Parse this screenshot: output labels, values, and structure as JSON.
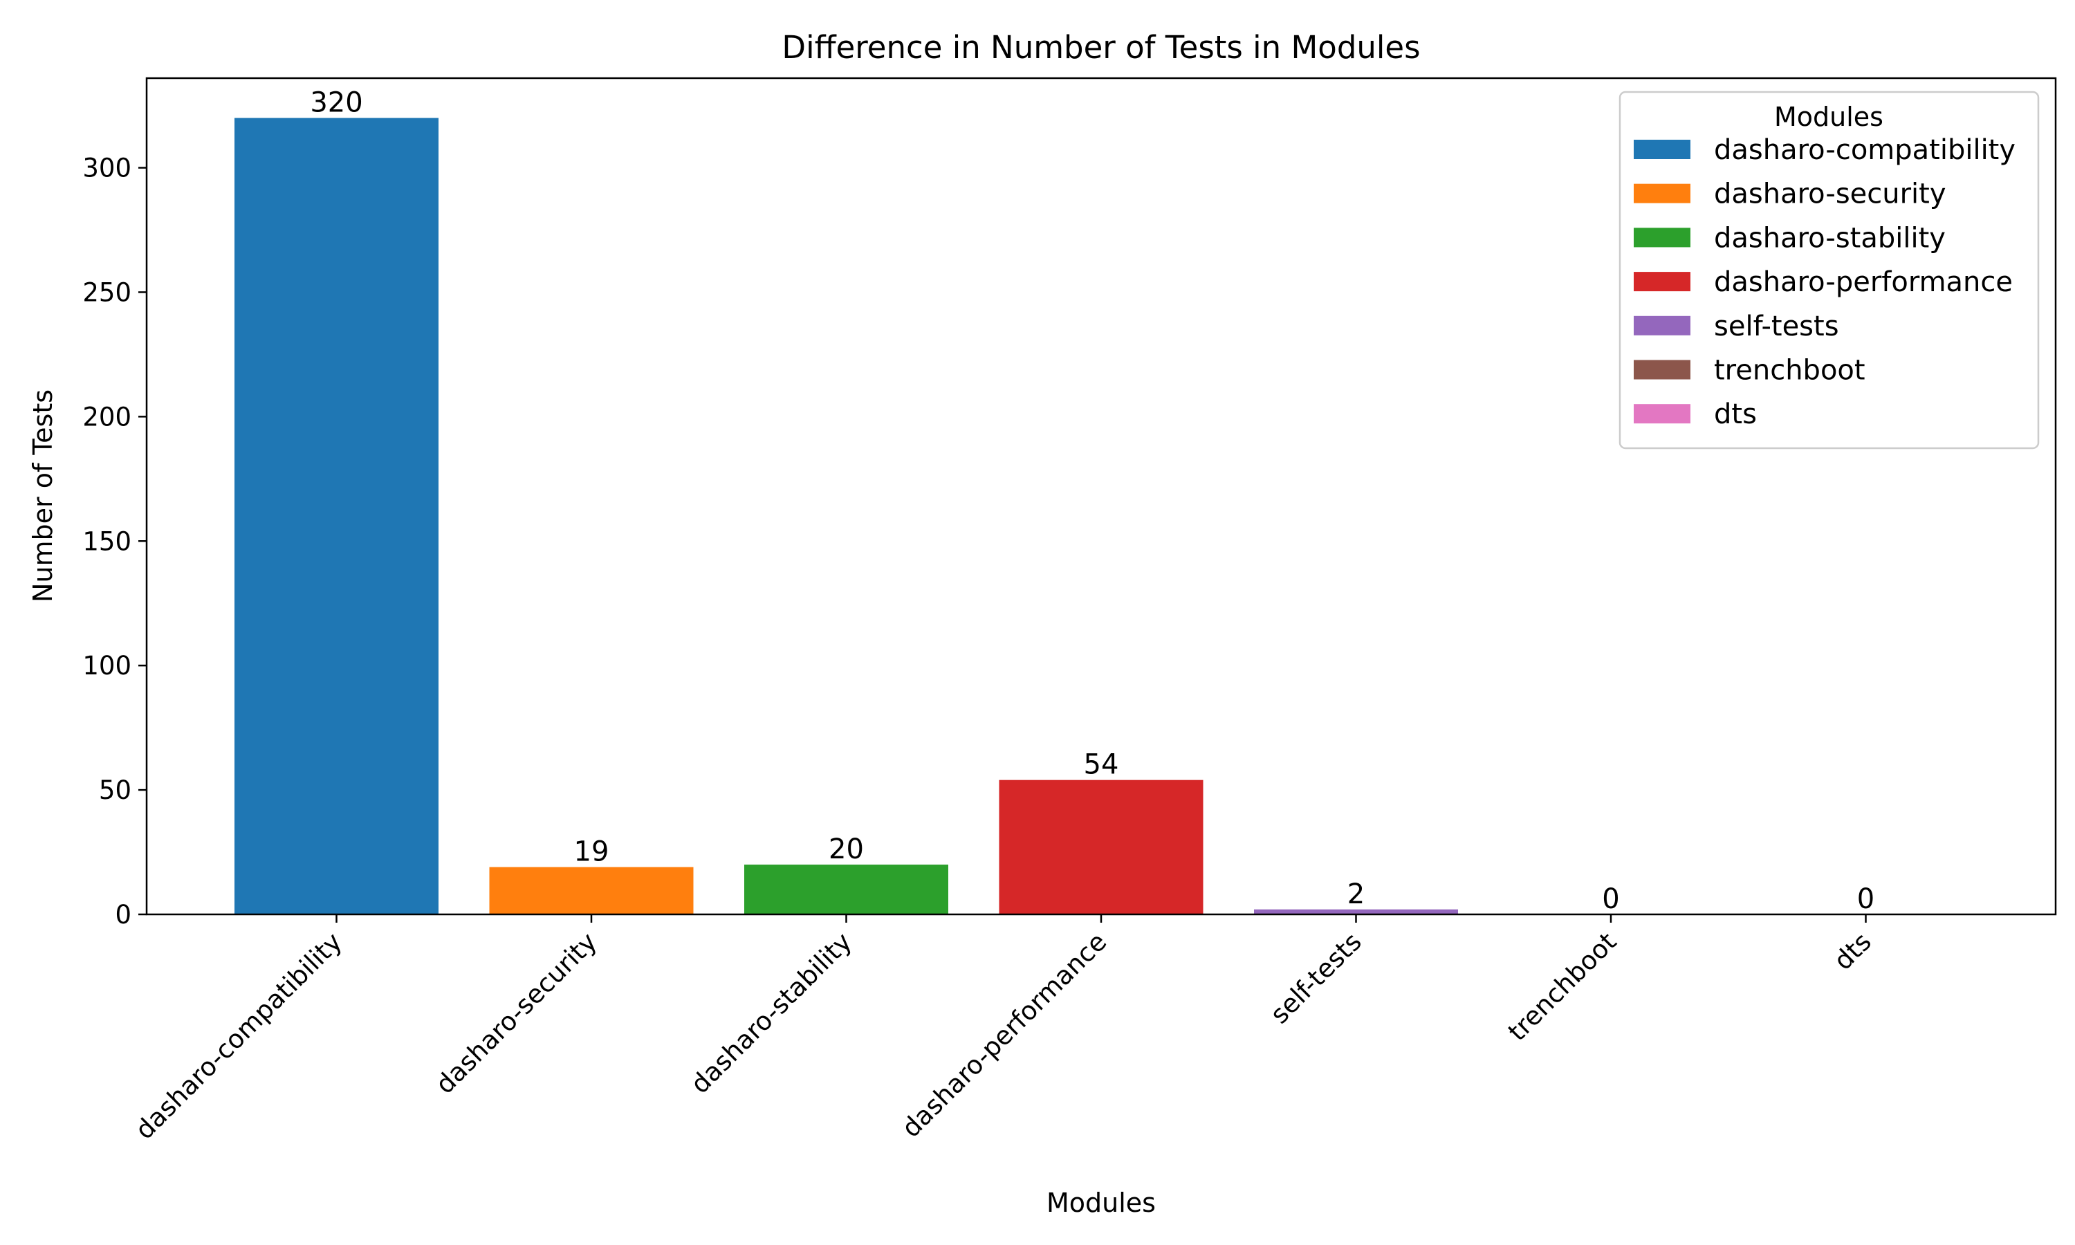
{
  "chart_data": {
    "type": "bar",
    "title": "Difference in Number of Tests in Modules",
    "xlabel": "Modules",
    "ylabel": "Number of Tests",
    "categories": [
      "dasharo-compatibility",
      "dasharo-security",
      "dasharo-stability",
      "dasharo-performance",
      "self-tests",
      "trenchboot",
      "dts"
    ],
    "values": [
      320,
      19,
      20,
      54,
      2,
      0,
      0
    ],
    "colors": [
      "#1f77b4",
      "#ff7f0e",
      "#2ca02c",
      "#d62728",
      "#9467bd",
      "#8c564b",
      "#e377c2"
    ],
    "ylim": [
      0,
      336
    ],
    "yticks": [
      0,
      50,
      100,
      150,
      200,
      250,
      300
    ],
    "grid": false,
    "legend": {
      "title": "Modules",
      "position": "top-right",
      "entries": [
        "dasharo-compatibility",
        "dasharo-security",
        "dasharo-stability",
        "dasharo-performance",
        "self-tests",
        "trenchboot",
        "dts"
      ]
    }
  }
}
